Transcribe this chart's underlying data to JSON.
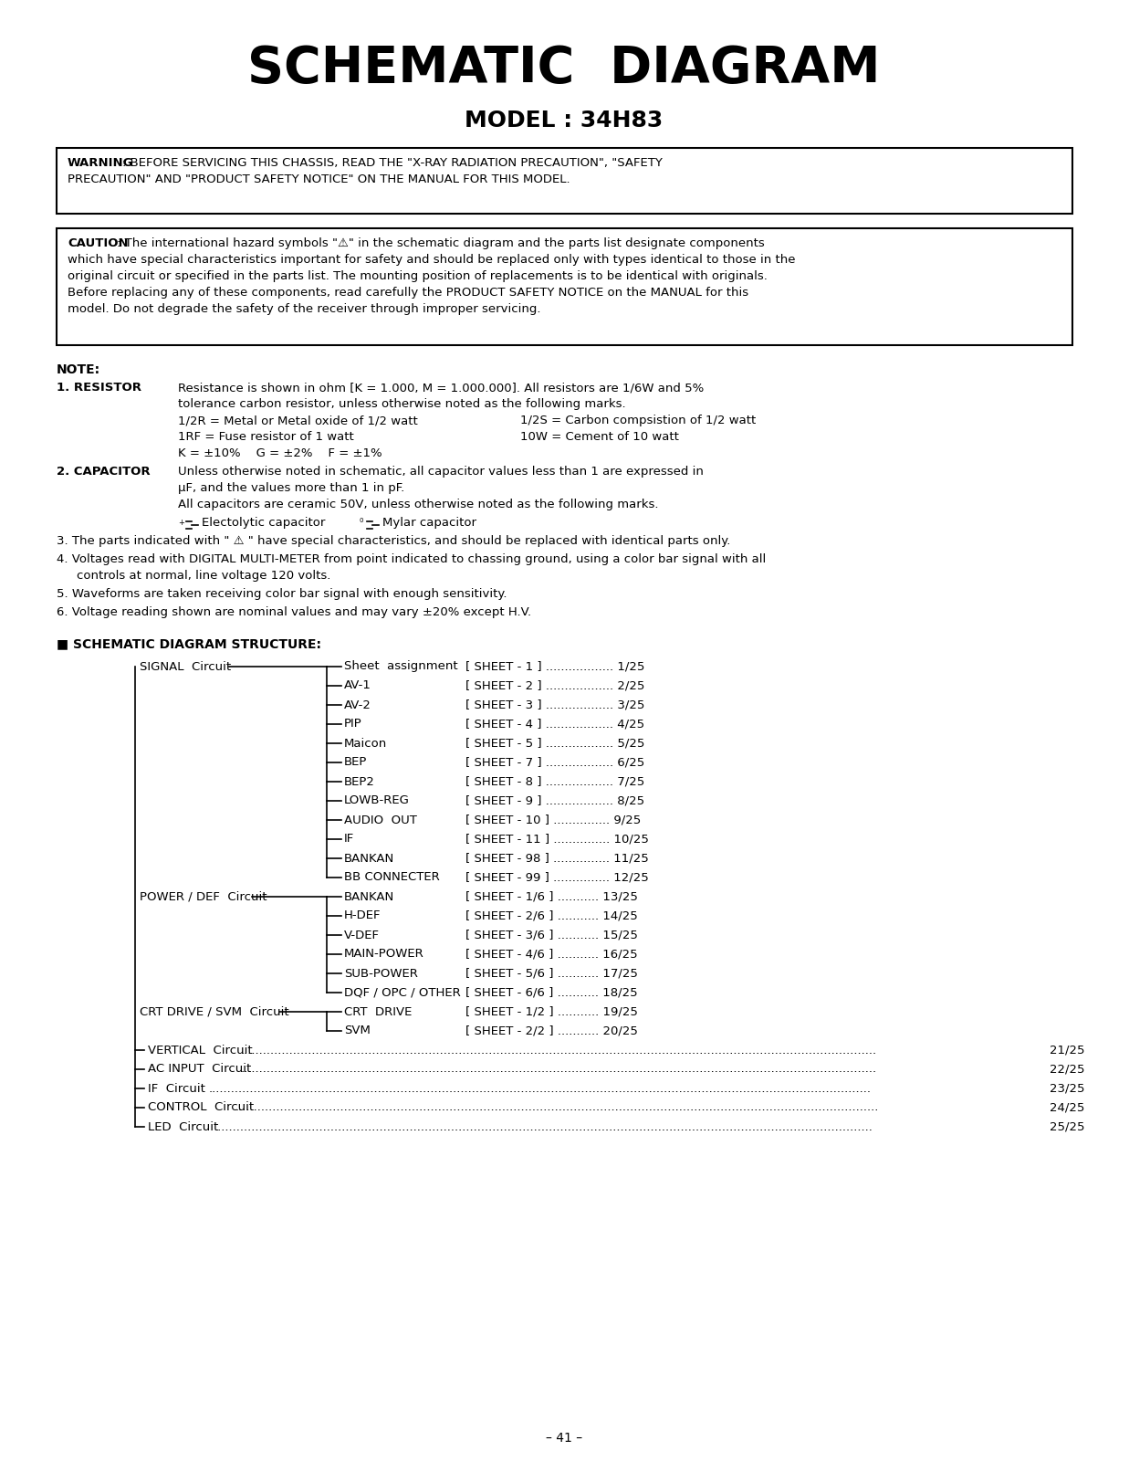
{
  "title": "SCHEMATIC  DIAGRAM",
  "subtitle": "MODEL : 34H83",
  "bg_color": "#ffffff",
  "text_color": "#000000",
  "page_number": "– 41 –",
  "warning_bold": "WARNING",
  "warning_rest": ": BEFORE SERVICING THIS CHASSIS, READ THE \"X-RAY RADIATION PRECAUTION\", \"SAFETY",
  "warning_rest2": "PRECAUTION\" AND \"PRODUCT SAFETY NOTICE\" ON THE MANUAL FOR THIS MODEL.",
  "caution_bold": "CAUTION",
  "caution_line1": ": The international hazard symbols \"⚠\" in the schematic diagram and the parts list designate components",
  "caution_line2": "which have special characteristics important for safety and should be replaced only with types identical to those in the",
  "caution_line3": "original circuit or specified in the parts list. The mounting position of replacements is to be identical with originals.",
  "caution_line4": "Before replacing any of these components, read carefully the PRODUCT SAFETY NOTICE on the MANUAL for this",
  "caution_line5": "model. Do not degrade the safety of the receiver through improper servicing.",
  "note_header": "NOTE:",
  "resistor_label": "1. RESISTOR",
  "resistor_line1": "Resistance is shown in ohm [K = 1.000, M = 1.000.000]. All resistors are 1/6W and 5%",
  "resistor_line2": "tolerance carbon resistor, unless otherwise noted as the following marks.",
  "resistor_line3a": "1/2R = Metal or Metal oxide of 1/2 watt",
  "resistor_line3b": "1/2S = Carbon compsistion of 1/2 watt",
  "resistor_line4a": "1RF = Fuse resistor of 1 watt",
  "resistor_line4b": "10W = Cement of 10 watt",
  "resistor_line5": "K = ±10%    G = ±2%    F = ±1%",
  "capacitor_label": "2. CAPACITOR",
  "capacitor_line1": "Unless otherwise noted in schematic, all capacitor values less than 1 are expressed in",
  "capacitor_line2": "μF, and the values more than 1 in pF.",
  "capacitor_line3": "All capacitors are ceramic 50V, unless otherwise noted as the following marks.",
  "cap_elec_label": "Electolytic capacitor",
  "cap_mylar_label": "Mylar capacitor",
  "note3": "3. The parts indicated with \" ⚠ \" have special characteristics, and should be replaced with identical parts only.",
  "note4a": "4. Voltages read with DIGITAL MULTI-METER from point indicated to chassing ground, using a color bar signal with all",
  "note4b": "    controls at normal, line voltage 120 volts.",
  "note5": "5. Waveforms are taken receiving color bar signal with enough sensitivity.",
  "note6": "6. Voltage reading shown are nominal values and may vary ±20% except H.V.",
  "structure_header": "■ SCHEMATIC DIAGRAM STRUCTURE:",
  "signal_label": "SIGNAL  Circuit",
  "signal_items": [
    [
      "Sheet  assignment",
      "[ SHEET - 1 ] .................. 1/25"
    ],
    [
      "AV-1",
      "[ SHEET - 2 ] .................. 2/25"
    ],
    [
      "AV-2",
      "[ SHEET - 3 ] .................. 3/25"
    ],
    [
      "PIP",
      "[ SHEET - 4 ] .................. 4/25"
    ],
    [
      "Maicon",
      "[ SHEET - 5 ] .................. 5/25"
    ],
    [
      "BEP",
      "[ SHEET - 7 ] .................. 6/25"
    ],
    [
      "BEP2",
      "[ SHEET - 8 ] .................. 7/25"
    ],
    [
      "LOWB-REG",
      "[ SHEET - 9 ] .................. 8/25"
    ],
    [
      "AUDIO  OUT",
      "[ SHEET - 10 ] ............... 9/25"
    ],
    [
      "IF",
      "[ SHEET - 11 ] ............... 10/25"
    ],
    [
      "BANKAN",
      "[ SHEET - 98 ] ............... 11/25"
    ],
    [
      "BB CONNECTER",
      "[ SHEET - 99 ] ............... 12/25"
    ]
  ],
  "power_label": "POWER / DEF  Circuit",
  "power_items": [
    [
      "BANKAN",
      "[ SHEET - 1/6 ] ........... 13/25"
    ],
    [
      "H-DEF",
      "[ SHEET - 2/6 ] ........... 14/25"
    ],
    [
      "V-DEF",
      "[ SHEET - 3/6 ] ........... 15/25"
    ],
    [
      "MAIN-POWER",
      "[ SHEET - 4/6 ] ........... 16/25"
    ],
    [
      "SUB-POWER",
      "[ SHEET - 5/6 ] ........... 17/25"
    ],
    [
      "DQF / OPC / OTHER",
      "[ SHEET - 6/6 ] ........... 18/25"
    ]
  ],
  "crt_label": "CRT DRIVE / SVM  Circuit",
  "crt_items": [
    [
      "CRT  DRIVE",
      "[ SHEET - 1/2 ] ........... 19/25"
    ],
    [
      "SVM",
      "[ SHEET - 2/2 ] ........... 20/25"
    ]
  ],
  "standalone_items": [
    [
      "VERTICAL  Circuit",
      "21/25"
    ],
    [
      "AC INPUT  Circuit",
      "22/25"
    ],
    [
      "IF  Circuit",
      "23/25"
    ],
    [
      "CONTROL  Circuit",
      "24/25"
    ],
    [
      "LED  Circuit",
      "25/25"
    ]
  ]
}
